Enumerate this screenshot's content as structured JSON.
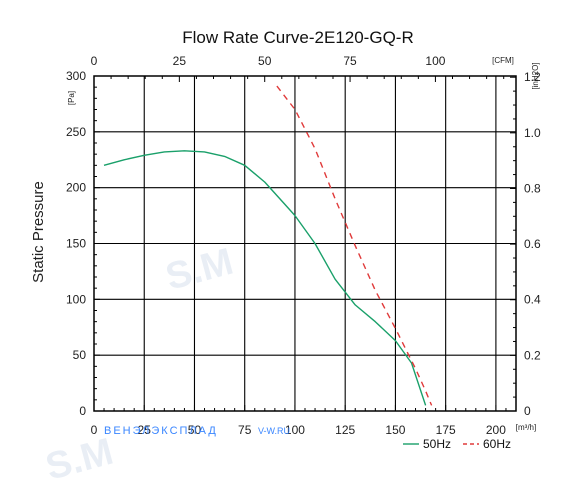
{
  "chart_data": {
    "type": "line",
    "title": "Flow Rate Curve-2E120-GQ-R",
    "ylabel": "Static Pressure",
    "y_unit_left": "[Pa]",
    "y_unit_right": "[inH2O]",
    "x_unit_bottom": "[m³/h]",
    "x_unit_top": "[CFM]",
    "xlim": [
      0,
      210
    ],
    "ylim": [
      0,
      300
    ],
    "x_ticks_bottom": [
      "0",
      "25",
      "50",
      "75",
      "100",
      "125",
      "150",
      "175",
      "200"
    ],
    "x_ticks_top": [
      "0",
      "25",
      "50",
      "75",
      "100"
    ],
    "y_ticks_left": [
      "0",
      "50",
      "100",
      "150",
      "200",
      "250",
      "300"
    ],
    "y_ticks_right": [
      "0",
      "0.2",
      "0.4",
      "0.6",
      "0.8",
      "1.0",
      "1.2"
    ],
    "grid": true,
    "legend_position": "bottom-right",
    "series": [
      {
        "name": "50Hz",
        "color": "#1aa06a",
        "style": "solid",
        "x": [
          5,
          15,
          25,
          35,
          45,
          55,
          65,
          75,
          85,
          95,
          100,
          110,
          120,
          130,
          140,
          150,
          158,
          165
        ],
        "y": [
          220,
          225,
          229,
          232,
          233,
          232,
          228,
          220,
          205,
          185,
          175,
          150,
          118,
          95,
          80,
          63,
          43,
          5
        ]
      },
      {
        "name": "60Hz",
        "color": "#e03a3a",
        "style": "dashed",
        "x": [
          91,
          100,
          110,
          120,
          130,
          140,
          150,
          160,
          165,
          168
        ],
        "y": [
          291,
          270,
          235,
          190,
          148,
          108,
          74,
          38,
          18,
          5
        ]
      }
    ]
  },
  "watermark": {
    "text": "ВЕНЭЛЭКСПЛАД",
    "site": "V-W.RU",
    "mark": "S.M"
  }
}
